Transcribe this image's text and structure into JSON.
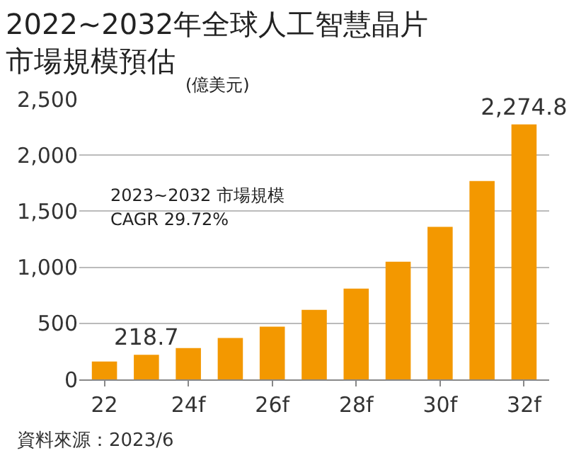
{
  "chart_data": {
    "type": "bar",
    "title": "2022~2032年全球人工智慧晶片市場規模預估",
    "subtitle": "(億美元)",
    "categories": [
      "22",
      null,
      "24f",
      null,
      "26f",
      null,
      "28f",
      null,
      "30f",
      null,
      "32f"
    ],
    "values": [
      160,
      218.7,
      280,
      370,
      470,
      620,
      810,
      1050,
      1360,
      1770,
      2274.8
    ],
    "value_labels": [
      null,
      "218.7",
      null,
      null,
      null,
      null,
      null,
      null,
      null,
      null,
      "2,274.8"
    ],
    "color": "#f39800",
    "ylim": [
      0,
      2500
    ],
    "yticks": [
      0,
      {
        "value": 500,
        "label": "500"
      },
      {
        "value": 1000,
        "label": "1,000"
      },
      {
        "value": 1500,
        "label": "1,500"
      },
      {
        "value": 2000,
        "label": "2,000"
      },
      {
        "value": 2500,
        "label": "2,500"
      }
    ],
    "grid": "y",
    "annotations": [
      "2023~2032 市場規模",
      "CAGR 29.72%",
      "資料來源：2023/6"
    ]
  }
}
